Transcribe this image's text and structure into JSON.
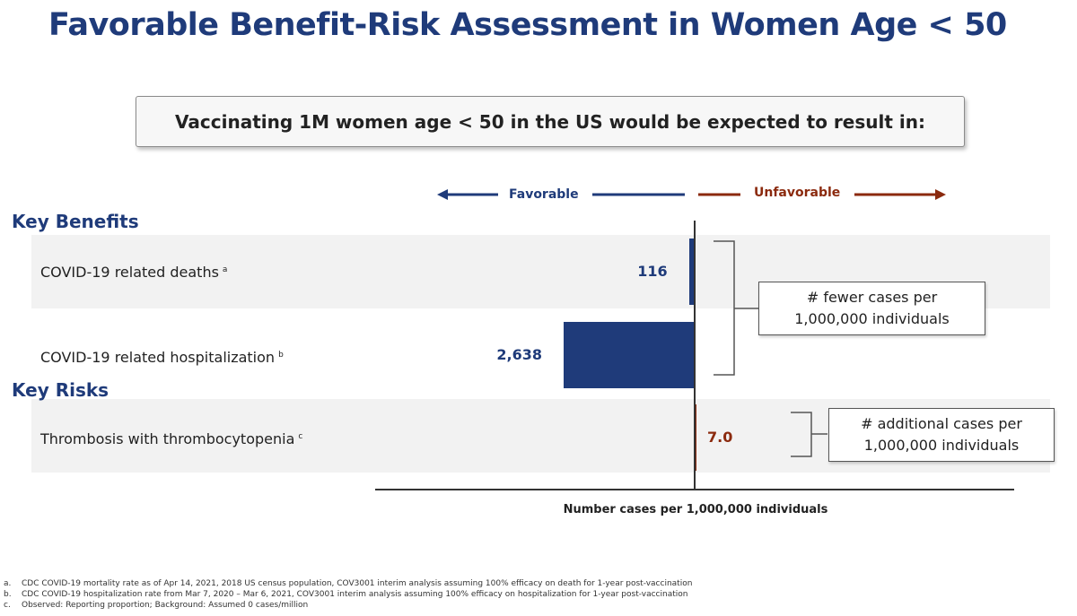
{
  "title": "Favorable Benefit-Risk Assessment in Women Age < 50",
  "callout": "Vaccinating 1M women age < 50 in the US would be expected to result in:",
  "direction": {
    "left": "Favorable",
    "right": "Unfavorable"
  },
  "colors": {
    "benefit": "#1f3b7a",
    "risk": "#8b2a0e",
    "title": "#1f3b7a"
  },
  "chart_data": {
    "type": "bar",
    "orientation": "horizontal-diverging",
    "sections": [
      {
        "name": "Key Benefits",
        "rows": [
          {
            "label": "COVID-19 related deaths",
            "sup": "a",
            "value": 116,
            "display": "116",
            "direction": "favorable"
          },
          {
            "label": "COVID-19 related hospitalization",
            "sup": "b",
            "value": 2638,
            "display": "2,638",
            "direction": "favorable"
          }
        ],
        "annotation": [
          "# fewer cases per",
          "1,000,000 individuals"
        ]
      },
      {
        "name": "Key Risks",
        "rows": [
          {
            "label": "Thrombosis with thrombocytopenia",
            "sup": "c",
            "value": 7.0,
            "display": "7.0",
            "direction": "unfavorable"
          }
        ],
        "annotation": [
          "# additional cases per",
          "1,000,000 individuals"
        ]
      }
    ],
    "xlabel": "Number cases per 1,000,000 individuals",
    "xlim": [
      -3000,
      4000
    ]
  },
  "footnotes": [
    {
      "key": "a.",
      "text": "CDC COVID-19 mortality rate as of Apr 14, 2021, 2018 US census population, COV3001 interim analysis assuming 100% efficacy on death for 1-year post-vaccination"
    },
    {
      "key": "b.",
      "text": "CDC COVID-19 hospitalization rate from Mar 7, 2020 – Mar 6, 2021, COV3001 interim analysis assuming 100% efficacy on hospitalization for 1-year post-vaccination"
    },
    {
      "key": "c.",
      "text": "Observed: Reporting proportion; Background: Assumed 0 cases/million"
    }
  ]
}
